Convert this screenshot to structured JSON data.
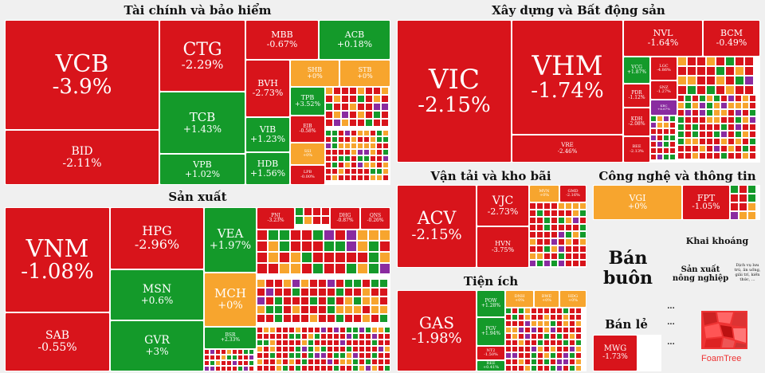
{
  "chart_data": {
    "type": "treemap",
    "legend": "none",
    "colors": {
      "down": "#d8141b",
      "up": "#149a2a",
      "flat": "#f7a52e",
      "ceiling": "#8a2ba0"
    },
    "sectors": [
      {
        "name": "Tài chính và bảo hiểm",
        "stocks": [
          {
            "ticker": "VCB",
            "change": "-3.9%"
          },
          {
            "ticker": "BID",
            "change": "-2.11%"
          },
          {
            "ticker": "CTG",
            "change": "-2.29%"
          },
          {
            "ticker": "TCB",
            "change": "+1.43%"
          },
          {
            "ticker": "VPB",
            "change": "+1.02%"
          },
          {
            "ticker": "MBB",
            "change": "-0.67%"
          },
          {
            "ticker": "ACB",
            "change": "+0.18%"
          },
          {
            "ticker": "BVH",
            "change": "-2.73%"
          },
          {
            "ticker": "VIB",
            "change": "+1.23%"
          },
          {
            "ticker": "HDB",
            "change": "+1.56%"
          },
          {
            "ticker": "SHB",
            "change": "+0%"
          },
          {
            "ticker": "STB",
            "change": "+0%"
          },
          {
            "ticker": "TPB",
            "change": "+3.52%"
          },
          {
            "ticker": "EIB",
            "change": "-0.58%"
          },
          {
            "ticker": "SSI",
            "change": "+0%"
          },
          {
            "ticker": "LPB",
            "change": "-0.00%"
          }
        ]
      },
      {
        "name": "Xây dựng và Bất động sản",
        "stocks": [
          {
            "ticker": "VIC",
            "change": "-2.15%"
          },
          {
            "ticker": "VHM",
            "change": "-1.74%"
          },
          {
            "ticker": "VRE",
            "change": "-2.46%"
          },
          {
            "ticker": "NVL",
            "change": "-1.64%"
          },
          {
            "ticker": "BCM",
            "change": "-0.49%"
          },
          {
            "ticker": "VCG",
            "change": "+1.87%"
          },
          {
            "ticker": "LGC",
            "change": "-4.86%"
          },
          {
            "ticker": "PDR",
            "change": "-1.12%"
          },
          {
            "ticker": "SNZ",
            "change": "-1.27%"
          },
          {
            "ticker": "KBC",
            "change": "+6.67%"
          },
          {
            "ticker": "KDH",
            "change": "-2.08%"
          },
          {
            "ticker": "BEE",
            "change": "-2.13%"
          }
        ]
      },
      {
        "name": "Sản xuất",
        "stocks": [
          {
            "ticker": "VNM",
            "change": "-1.08%"
          },
          {
            "ticker": "SAB",
            "change": "-0.55%"
          },
          {
            "ticker": "HPG",
            "change": "-2.96%"
          },
          {
            "ticker": "MSN",
            "change": "+0.6%"
          },
          {
            "ticker": "GVR",
            "change": "+3%"
          },
          {
            "ticker": "VEA",
            "change": "+1.97%"
          },
          {
            "ticker": "MCH",
            "change": "+0%"
          },
          {
            "ticker": "BSR",
            "change": "+2.33%"
          },
          {
            "ticker": "PNJ",
            "change": "-3.23%"
          },
          {
            "ticker": "DHG",
            "change": "-0.87%"
          },
          {
            "ticker": "QNS",
            "change": "-0.26%"
          }
        ]
      },
      {
        "name": "Vận tải và kho bãi",
        "stocks": [
          {
            "ticker": "ACV",
            "change": "-2.15%"
          },
          {
            "ticker": "VJC",
            "change": "-2.73%"
          },
          {
            "ticker": "HVN",
            "change": "-3.75%"
          },
          {
            "ticker": "MVN",
            "change": "+0%"
          },
          {
            "ticker": "GMD",
            "change": "-2.16%"
          }
        ]
      },
      {
        "name": "Công nghệ và thông tin",
        "stocks": [
          {
            "ticker": "VGI",
            "change": "+0%"
          },
          {
            "ticker": "FPT",
            "change": "-1.05%"
          }
        ]
      },
      {
        "name": "Tiện ích",
        "stocks": [
          {
            "ticker": "GAS",
            "change": "-1.98%"
          },
          {
            "ticker": "POW",
            "change": "+1.28%"
          },
          {
            "ticker": "PGV",
            "change": "+1.94%"
          },
          {
            "ticker": "DNH",
            "change": "+0%"
          },
          {
            "ticker": "BWE",
            "change": "+0%"
          },
          {
            "ticker": "HDG",
            "change": "+0%"
          },
          {
            "ticker": "NT2",
            "change": "-1.50%"
          },
          {
            "ticker": "REE",
            "change": "+0.41%"
          }
        ]
      },
      {
        "name": "Bán buôn",
        "stocks": []
      },
      {
        "name": "Khai khoáng",
        "stocks": []
      },
      {
        "name": "Sản xuất nông nghiệp",
        "stocks": []
      },
      {
        "name": "Dịch vụ lưu trú",
        "stocks": []
      },
      {
        "name": "Bán lẻ",
        "stocks": [
          {
            "ticker": "MWG",
            "change": "-1.73%"
          }
        ]
      }
    ]
  },
  "labels": {
    "ban_buon_line1": "Bán",
    "ban_buon_line2": "buôn",
    "khai_khoang": "Khai khoáng",
    "nong_nghiep": "Sản xuất nông nghiệp",
    "dich_vu": "Dịch vụ lưu trú, ăn uống, giải trí, kiến thức, ...",
    "ellipsis": "...",
    "brand": "FoamTree"
  }
}
